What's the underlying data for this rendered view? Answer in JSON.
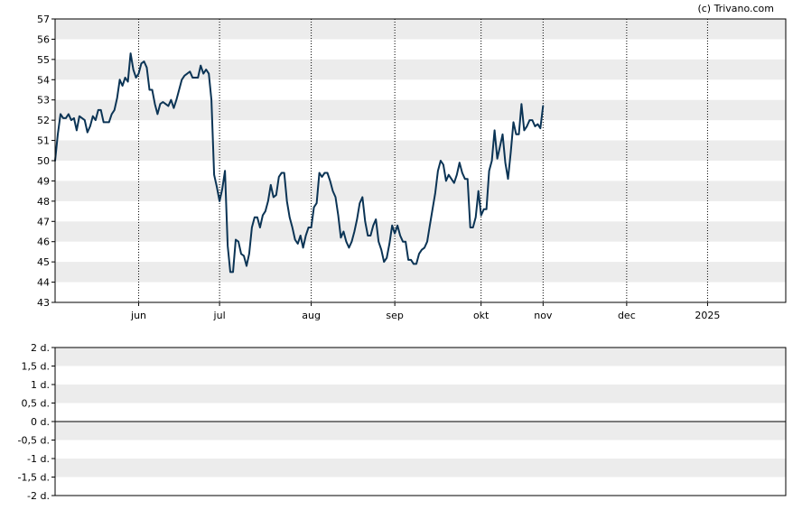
{
  "watermark": "(c) Trivano.com",
  "chart_data": [
    {
      "type": "line",
      "title": "",
      "xlabel": "",
      "ylabel": "",
      "ylim": [
        43,
        57
      ],
      "yticks": [
        "43",
        "44",
        "45",
        "46",
        "47",
        "48",
        "49",
        "50",
        "51",
        "52",
        "53",
        "54",
        "55",
        "56",
        "57"
      ],
      "xlim": [
        0,
        271
      ],
      "xticks": [
        {
          "label": "jun",
          "x": 31
        },
        {
          "label": "jul",
          "x": 61
        },
        {
          "label": "aug",
          "x": 95
        },
        {
          "label": "sep",
          "x": 126
        },
        {
          "label": "okt",
          "x": 158
        },
        {
          "label": "nov",
          "x": 181
        },
        {
          "label": "dec",
          "x": 212
        },
        {
          "label": "2025",
          "x": 242
        }
      ],
      "x_unit": "trading days",
      "grid": "alternating horizontal bands, dotted vertical lines at month starts",
      "series": [
        {
          "color": "#0b3455",
          "points": [
            [
              0,
              50.0
            ],
            [
              1,
              51.3
            ],
            [
              2,
              52.3
            ],
            [
              3,
              52.1
            ],
            [
              4,
              52.1
            ],
            [
              5,
              52.3
            ],
            [
              6,
              52.0
            ],
            [
              7,
              52.1
            ],
            [
              8,
              51.5
            ],
            [
              9,
              52.2
            ],
            [
              10,
              52.1
            ],
            [
              11,
              52.0
            ],
            [
              12,
              51.4
            ],
            [
              13,
              51.7
            ],
            [
              14,
              52.2
            ],
            [
              15,
              52.0
            ],
            [
              16,
              52.5
            ],
            [
              17,
              52.5
            ],
            [
              18,
              51.9
            ],
            [
              19,
              51.9
            ],
            [
              20,
              51.9
            ],
            [
              21,
              52.3
            ],
            [
              22,
              52.5
            ],
            [
              23,
              53.1
            ],
            [
              24,
              54.0
            ],
            [
              25,
              53.7
            ],
            [
              26,
              54.1
            ],
            [
              27,
              53.9
            ],
            [
              28,
              55.3
            ],
            [
              29,
              54.5
            ],
            [
              30,
              54.1
            ],
            [
              31,
              54.3
            ],
            [
              32,
              54.8
            ],
            [
              33,
              54.9
            ],
            [
              34,
              54.6
            ],
            [
              35,
              53.5
            ],
            [
              36,
              53.5
            ],
            [
              37,
              52.8
            ],
            [
              38,
              52.3
            ],
            [
              39,
              52.8
            ],
            [
              40,
              52.9
            ],
            [
              41,
              52.8
            ],
            [
              42,
              52.7
            ],
            [
              43,
              53.0
            ],
            [
              44,
              52.6
            ],
            [
              45,
              53.0
            ],
            [
              46,
              53.5
            ],
            [
              47,
              54.0
            ],
            [
              48,
              54.2
            ],
            [
              49,
              54.3
            ],
            [
              50,
              54.4
            ],
            [
              51,
              54.1
            ],
            [
              52,
              54.1
            ],
            [
              53,
              54.1
            ],
            [
              54,
              54.7
            ],
            [
              55,
              54.3
            ],
            [
              56,
              54.5
            ],
            [
              57,
              54.3
            ],
            [
              58,
              53.0
            ],
            [
              59,
              49.3
            ],
            [
              60,
              48.7
            ],
            [
              61,
              48.0
            ],
            [
              62,
              48.6
            ],
            [
              63,
              49.5
            ],
            [
              64,
              45.8
            ],
            [
              65,
              44.5
            ],
            [
              66,
              44.5
            ],
            [
              67,
              46.1
            ],
            [
              68,
              46.0
            ],
            [
              69,
              45.4
            ],
            [
              70,
              45.3
            ],
            [
              71,
              44.8
            ],
            [
              72,
              45.4
            ],
            [
              73,
              46.7
            ],
            [
              74,
              47.2
            ],
            [
              75,
              47.2
            ],
            [
              76,
              46.7
            ],
            [
              77,
              47.3
            ],
            [
              78,
              47.5
            ],
            [
              79,
              48.0
            ],
            [
              80,
              48.8
            ],
            [
              81,
              48.2
            ],
            [
              82,
              48.3
            ],
            [
              83,
              49.2
            ],
            [
              84,
              49.4
            ],
            [
              85,
              49.4
            ],
            [
              86,
              48.0
            ],
            [
              87,
              47.2
            ],
            [
              88,
              46.7
            ],
            [
              89,
              46.1
            ],
            [
              90,
              45.9
            ],
            [
              91,
              46.3
            ],
            [
              92,
              45.7
            ],
            [
              93,
              46.3
            ],
            [
              94,
              46.7
            ],
            [
              95,
              46.7
            ],
            [
              96,
              47.7
            ],
            [
              97,
              47.9
            ],
            [
              98,
              49.4
            ],
            [
              99,
              49.2
            ],
            [
              100,
              49.4
            ],
            [
              101,
              49.4
            ],
            [
              102,
              49.0
            ],
            [
              103,
              48.5
            ],
            [
              104,
              48.2
            ],
            [
              105,
              47.3
            ],
            [
              106,
              46.2
            ],
            [
              107,
              46.5
            ],
            [
              108,
              46.0
            ],
            [
              109,
              45.7
            ],
            [
              110,
              46.0
            ],
            [
              111,
              46.5
            ],
            [
              112,
              47.1
            ],
            [
              113,
              47.9
            ],
            [
              114,
              48.2
            ],
            [
              115,
              47.0
            ],
            [
              116,
              46.3
            ],
            [
              117,
              46.3
            ],
            [
              118,
              46.8
            ],
            [
              119,
              47.1
            ],
            [
              120,
              46.0
            ],
            [
              121,
              45.6
            ],
            [
              122,
              45.0
            ],
            [
              123,
              45.2
            ],
            [
              124,
              45.9
            ],
            [
              125,
              46.8
            ],
            [
              126,
              46.4
            ],
            [
              127,
              46.8
            ],
            [
              128,
              46.3
            ],
            [
              129,
              46.0
            ],
            [
              130,
              46.0
            ],
            [
              131,
              45.1
            ],
            [
              132,
              45.1
            ],
            [
              133,
              44.9
            ],
            [
              134,
              44.9
            ],
            [
              135,
              45.4
            ],
            [
              136,
              45.6
            ],
            [
              137,
              45.7
            ],
            [
              138,
              46.0
            ],
            [
              139,
              46.8
            ],
            [
              140,
              47.6
            ],
            [
              141,
              48.4
            ],
            [
              142,
              49.5
            ],
            [
              143,
              50.0
            ],
            [
              144,
              49.8
            ],
            [
              145,
              49.0
            ],
            [
              146,
              49.3
            ],
            [
              147,
              49.1
            ],
            [
              148,
              48.9
            ],
            [
              149,
              49.3
            ],
            [
              150,
              49.9
            ],
            [
              151,
              49.4
            ],
            [
              152,
              49.1
            ],
            [
              153,
              49.1
            ],
            [
              154,
              46.7
            ],
            [
              155,
              46.7
            ],
            [
              156,
              47.2
            ],
            [
              157,
              48.5
            ],
            [
              158,
              47.3
            ],
            [
              159,
              47.6
            ],
            [
              160,
              47.6
            ],
            [
              161,
              49.5
            ],
            [
              162,
              50.0
            ],
            [
              163,
              51.5
            ],
            [
              164,
              50.1
            ],
            [
              165,
              50.7
            ],
            [
              166,
              51.3
            ],
            [
              167,
              49.9
            ],
            [
              168,
              49.1
            ],
            [
              169,
              50.4
            ],
            [
              170,
              51.9
            ],
            [
              171,
              51.3
            ],
            [
              172,
              51.3
            ],
            [
              173,
              52.8
            ],
            [
              174,
              51.5
            ],
            [
              175,
              51.7
            ],
            [
              176,
              52.0
            ],
            [
              177,
              52.0
            ],
            [
              178,
              51.7
            ],
            [
              179,
              51.8
            ],
            [
              180,
              51.6
            ],
            [
              181,
              52.7
            ]
          ]
        }
      ]
    },
    {
      "type": "line",
      "title": "",
      "xlabel": "",
      "ylabel": "",
      "ylim": [
        -2,
        2
      ],
      "yticks": [
        "-2 d.",
        "-1,5 d.",
        "-1 d.",
        "-0,5 d.",
        "0 d.",
        "0,5 d.",
        "1 d.",
        "1,5 d.",
        "2 d."
      ],
      "grid": "alternating horizontal bands",
      "series": []
    }
  ]
}
